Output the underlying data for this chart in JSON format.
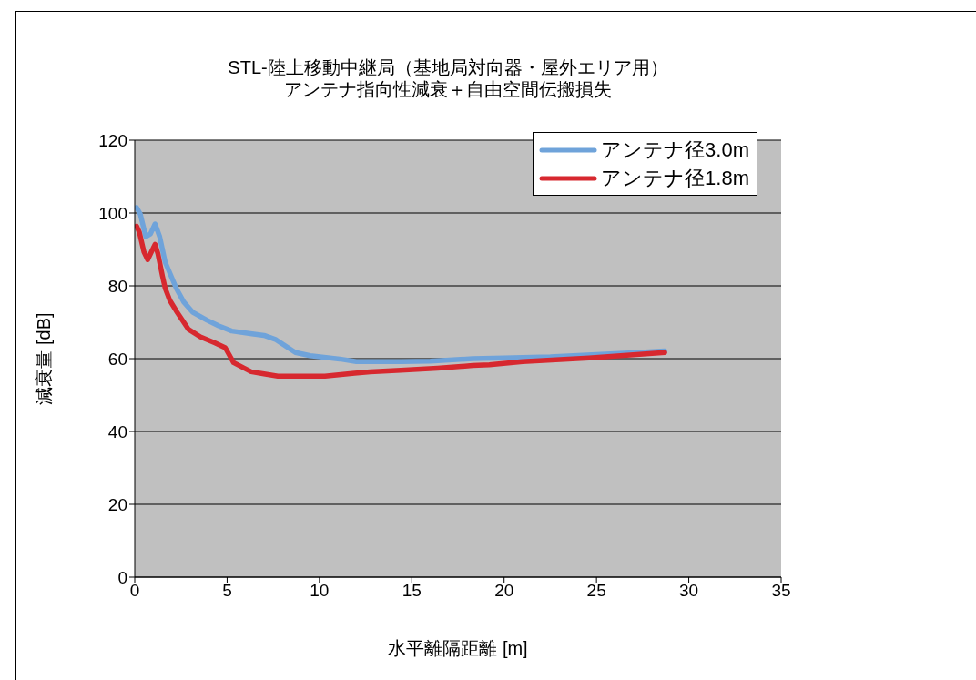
{
  "chart_data": {
    "type": "line",
    "title": "STL-陸上移動中継局（基地局対向器・屋外エリア用）",
    "subtitle": "アンテナ指向性減衰＋自由空間伝搬損失",
    "xlabel": "水平離隔距離 [m]",
    "ylabel": "減衰量 [dB]",
    "series": [
      {
        "name": "アンテナ径3.0m",
        "color": "#6fa3da",
        "x": [
          0.1,
          0.3,
          0.6,
          0.85,
          1.1,
          1.35,
          1.65,
          1.9,
          2.25,
          2.65,
          3.15,
          3.9,
          4.55,
          5.25,
          6.35,
          7.0,
          7.65,
          8.7,
          9.5,
          11.1,
          12.0,
          14.4,
          16.0,
          18.3,
          20,
          22.5,
          25,
          27,
          28.7
        ],
        "values": [
          101.5,
          99.7,
          93.5,
          94.3,
          97,
          93.5,
          86.5,
          83.5,
          79.3,
          75.6,
          72.7,
          70.6,
          69,
          67.6,
          66.8,
          66.4,
          65.2,
          61.7,
          60.8,
          59.9,
          59.2,
          59.2,
          59.3,
          60.0,
          60.2,
          60.5,
          61.1,
          61.6,
          62.1
        ]
      },
      {
        "name": "アンテナ径1.8m",
        "color": "#d7282f",
        "x": [
          0.1,
          0.25,
          0.5,
          0.7,
          0.9,
          1.1,
          1.25,
          1.5,
          1.65,
          1.9,
          2.3,
          2.9,
          3.55,
          4.35,
          4.9,
          5.35,
          6.3,
          7.0,
          7.75,
          10.3,
          11.9,
          12.75,
          14.4,
          16.4,
          18.3,
          19.2,
          21,
          24.6,
          28.7
        ],
        "values": [
          96.4,
          94.7,
          89.3,
          87.2,
          89.3,
          91.4,
          88.9,
          82.7,
          79.3,
          76,
          72.7,
          68.1,
          66,
          64.3,
          63,
          58.9,
          56.4,
          55.8,
          55.2,
          55.2,
          56,
          56.4,
          56.8,
          57.4,
          58.1,
          58.3,
          59.2,
          60.2,
          61.7
        ]
      }
    ],
    "xlim": [
      0,
      35
    ],
    "xticks": [
      0,
      5,
      10,
      15,
      20,
      25,
      30,
      35
    ],
    "ylim": [
      0,
      120
    ],
    "yticks": [
      0,
      20,
      40,
      60,
      80,
      100,
      120
    ],
    "grid": "y",
    "legend": "top right",
    "line_style": "solid"
  }
}
